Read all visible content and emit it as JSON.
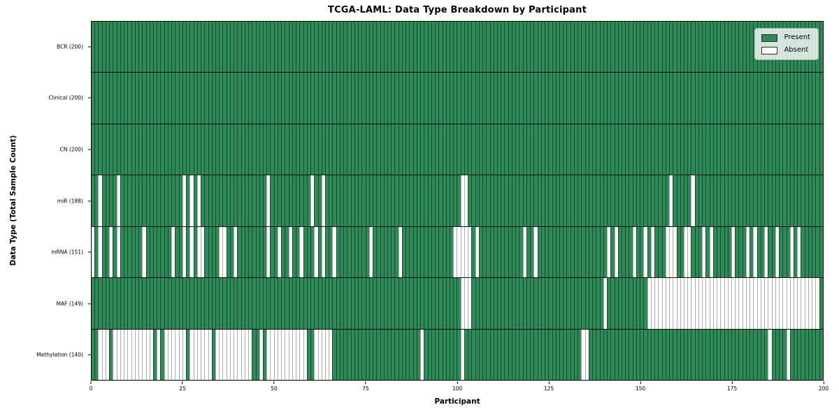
{
  "chart_data": {
    "type": "heatmap",
    "title": "TCGA-LAML: Data Type Breakdown by Participant",
    "xlabel": "Participant",
    "ylabel": "Data Type (Total Sample Count)",
    "x_ticks": [
      0,
      25,
      50,
      75,
      100,
      125,
      150,
      175,
      200
    ],
    "n_participants": 200,
    "xlim": [
      0,
      200
    ],
    "grid": false,
    "legend_position": "upper right",
    "colors": {
      "present": "#2e8b57",
      "absent": "#ffffff",
      "cell_edge": "rgba(8,22,14,0.55)",
      "frame": "#000000"
    },
    "legend": [
      {
        "label": "Present",
        "color": "#2e8b57"
      },
      {
        "label": "Absent",
        "color": "#ffffff"
      }
    ],
    "rows": [
      {
        "label": "BCR (200)",
        "name": "bcr",
        "present_count": 200,
        "absent": []
      },
      {
        "label": "Clinical (200)",
        "name": "clinical",
        "present_count": 200,
        "absent": []
      },
      {
        "label": "CN (200)",
        "name": "cn",
        "present_count": 200,
        "absent": []
      },
      {
        "label": "miR (188)",
        "name": "mir",
        "present_count": 188,
        "absent": [
          2,
          7,
          25,
          27,
          29,
          48,
          60,
          63,
          101,
          102,
          158,
          164
        ]
      },
      {
        "label": "mRNA (151)",
        "name": "mrna",
        "present_count": 151,
        "absent": [
          0,
          2,
          5,
          7,
          14,
          22,
          25,
          27,
          29,
          30,
          35,
          36,
          39,
          48,
          51,
          54,
          57,
          61,
          63,
          66,
          76,
          84,
          99,
          100,
          101,
          102,
          103,
          105,
          118,
          121,
          141,
          143,
          148,
          151,
          153,
          157,
          158,
          159,
          162,
          163,
          167,
          169,
          175,
          179,
          181,
          184,
          187,
          191,
          193
        ]
      },
      {
        "label": "MAF (149)",
        "name": "maf",
        "present_count": 149,
        "absent": [
          101,
          102,
          103,
          140,
          152,
          153,
          154,
          155,
          156,
          157,
          158,
          159,
          160,
          161,
          162,
          163,
          164,
          165,
          166,
          167,
          168,
          169,
          170,
          171,
          172,
          173,
          174,
          175,
          176,
          177,
          178,
          179,
          180,
          181,
          182,
          183,
          184,
          185,
          186,
          187,
          188,
          189,
          190,
          191,
          192,
          193,
          194,
          195,
          196,
          197,
          198
        ]
      },
      {
        "label": "Methylation (140)",
        "name": "methylation",
        "present_count": 140,
        "absent": [
          2,
          3,
          4,
          6,
          7,
          8,
          9,
          10,
          11,
          12,
          13,
          14,
          15,
          16,
          18,
          20,
          21,
          22,
          23,
          24,
          25,
          27,
          28,
          29,
          30,
          31,
          32,
          34,
          35,
          36,
          37,
          38,
          39,
          40,
          41,
          42,
          43,
          46,
          48,
          49,
          50,
          51,
          52,
          53,
          54,
          55,
          56,
          57,
          58,
          61,
          62,
          63,
          64,
          65,
          90,
          101,
          134,
          135,
          185,
          190
        ]
      }
    ]
  }
}
